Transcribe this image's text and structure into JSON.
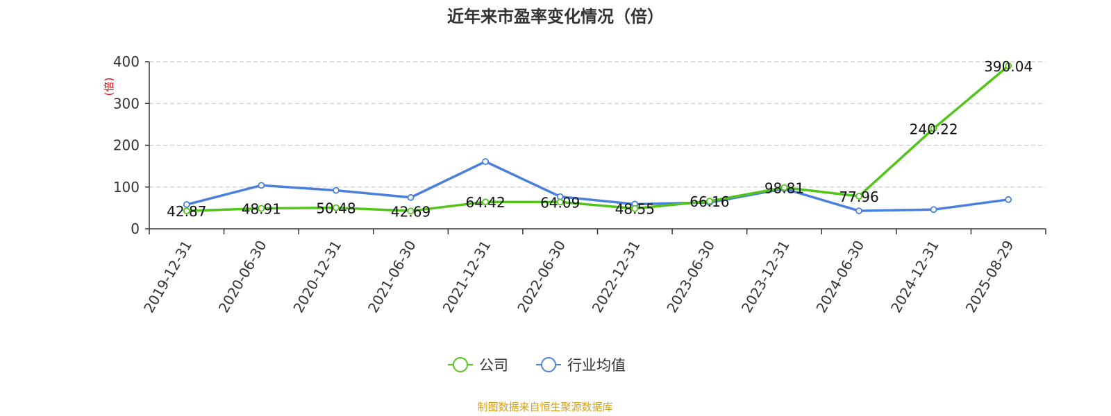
{
  "chart_data": {
    "type": "line",
    "title": "近年来市盈率变化情况（倍）",
    "ylabel": "(倍)",
    "ylim": [
      0,
      400
    ],
    "yticks": [
      0,
      100,
      200,
      300,
      400
    ],
    "grid": true,
    "legend_position": "bottom-center",
    "categories": [
      "2019-12-31",
      "2020-06-30",
      "2020-12-31",
      "2021-06-30",
      "2021-12-31",
      "2022-06-30",
      "2022-12-31",
      "2023-06-30",
      "2023-12-31",
      "2024-06-30",
      "2024-12-31",
      "2025-08-29"
    ],
    "series": [
      {
        "name": "公司",
        "color": "#52c41a",
        "values": [
          42.87,
          48.91,
          50.48,
          42.69,
          64.42,
          64.09,
          48.55,
          66.16,
          98.81,
          77.96,
          240.22,
          390.04
        ],
        "labels": [
          "42.87",
          "48.91",
          "50.48",
          "42.69",
          "64.42",
          "64.09",
          "48.55",
          "66.16",
          "98.81",
          "77.96",
          "240.22",
          "390.04"
        ]
      },
      {
        "name": "行业均值",
        "color": "#4a7fdc",
        "values": [
          58,
          104,
          92,
          75,
          161,
          77,
          59,
          63,
          96,
          43,
          46,
          70
        ]
      }
    ]
  },
  "source": "制图数据来自恒生聚源数据库",
  "colors": {
    "axis": "#333333",
    "grid": "#cccccc",
    "unit": "#e00000",
    "source": "#d4a017"
  }
}
